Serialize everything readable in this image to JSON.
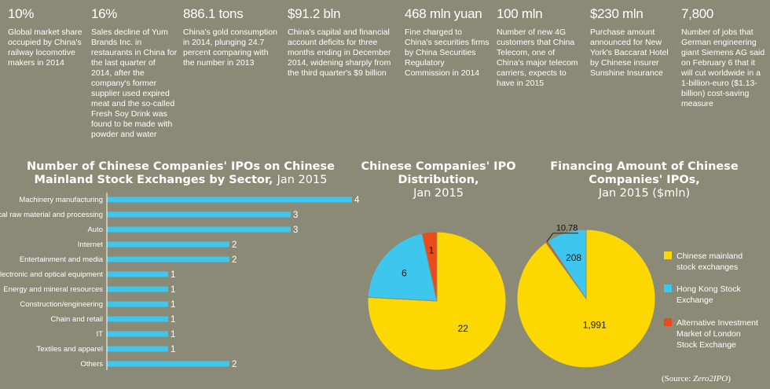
{
  "stats": [
    {
      "value": "10%",
      "desc": "Global market share occupied by China's railway locomotive makers in 2014"
    },
    {
      "value": "16%",
      "desc": "Sales decline of Yum Brands Inc. in restaurants in China for the last quarter of 2014, after the company's former supplier used expired meat and the so-called Fresh Soy Drink was found to be made with powder and water"
    },
    {
      "value": "886.1 tons",
      "desc": "China's gold consumption in 2014, plunging 24.7 percent comparing with the number in 2013"
    },
    {
      "value": "$91.2 bln",
      "desc": "China's capital and financial account deficits for three months ending in December 2014, widening sharply from the third quarter's $9 billion"
    },
    {
      "value": "468 mln yuan",
      "desc": "Fine charged to China's securities firms by China Securities Regulatory Commission in 2014"
    },
    {
      "value": "100 mln",
      "desc": "Number of new 4G customers that China Telecom, one of China's major telecom carriers, expects to have in 2015"
    },
    {
      "value": "$230 mln",
      "desc": "Purchase amount announced for New York's Baccarat Hotel by Chinese insurer Sunshine Insurance"
    },
    {
      "value": "7,800",
      "desc": "Number of jobs that German engineering giant Siemens AG said on February 6 that it will cut worldwide in a 1-billion-euro ($1.13-billion) cost-saving measure"
    }
  ],
  "colors": {
    "bar": "#3dc7ee",
    "mainland": "#fdd800",
    "hongkong": "#3dc7ee",
    "london": "#ea4a1c",
    "background": "#8a8a76"
  },
  "bar_chart": {
    "title_bold": "Number of Chinese Companies' IPOs on Chinese Mainland Stock Exchanges by Sector,",
    "title_date": "Jan 2015"
  },
  "pie1": {
    "title_bold": "Chinese Companies' IPO Distribution,",
    "title_date": "Jan 2015"
  },
  "pie2": {
    "title_bold": "Financing Amount of Chinese Companies' IPOs,",
    "title_date": "Jan 2015 ($mln)"
  },
  "legend": [
    {
      "label": "Chinese mainland stock exchanges",
      "color": "#fdd800"
    },
    {
      "label": "Hong Kong Stock Exchange",
      "color": "#3dc7ee"
    },
    {
      "label": "Alternative Investment Market of London Stock Exchange",
      "color": "#ea4a1c"
    }
  ],
  "source": {
    "prefix": "(Source: ",
    "name": "Zero2IPO",
    "suffix": ")"
  },
  "chart_data": [
    {
      "type": "bar",
      "orientation": "horizontal",
      "title": "Number of Chinese Companies' IPOs on Chinese Mainland Stock Exchanges by Sector, Jan 2015",
      "categories": [
        "Machinery manufacturing",
        "Chemical raw material and processing",
        "Auto",
        "Internet",
        "Entertainment and media",
        "Electronic and optical equipment",
        "Energy and mineral resources",
        "Construction/engineering",
        "Chain and retail",
        "IT",
        "Textiles and apparel",
        "Others"
      ],
      "values": [
        4,
        3,
        3,
        2,
        2,
        1,
        1,
        1,
        1,
        1,
        1,
        2
      ],
      "xlim": [
        0,
        4
      ]
    },
    {
      "type": "pie",
      "title": "Chinese Companies' IPO Distribution, Jan 2015",
      "labels": [
        "Chinese mainland stock exchanges",
        "Hong Kong Stock Exchange",
        "Alternative Investment Market of London Stock Exchange"
      ],
      "values": [
        22,
        6,
        1
      ]
    },
    {
      "type": "pie",
      "title": "Financing Amount of Chinese Companies' IPOs, Jan 2015 ($mln)",
      "labels": [
        "Chinese mainland stock exchanges",
        "Hong Kong Stock Exchange",
        "Alternative Investment Market of London Stock Exchange"
      ],
      "values": [
        1991,
        208,
        10.78
      ],
      "value_labels": [
        "1,991",
        "208",
        "10.78"
      ]
    }
  ]
}
